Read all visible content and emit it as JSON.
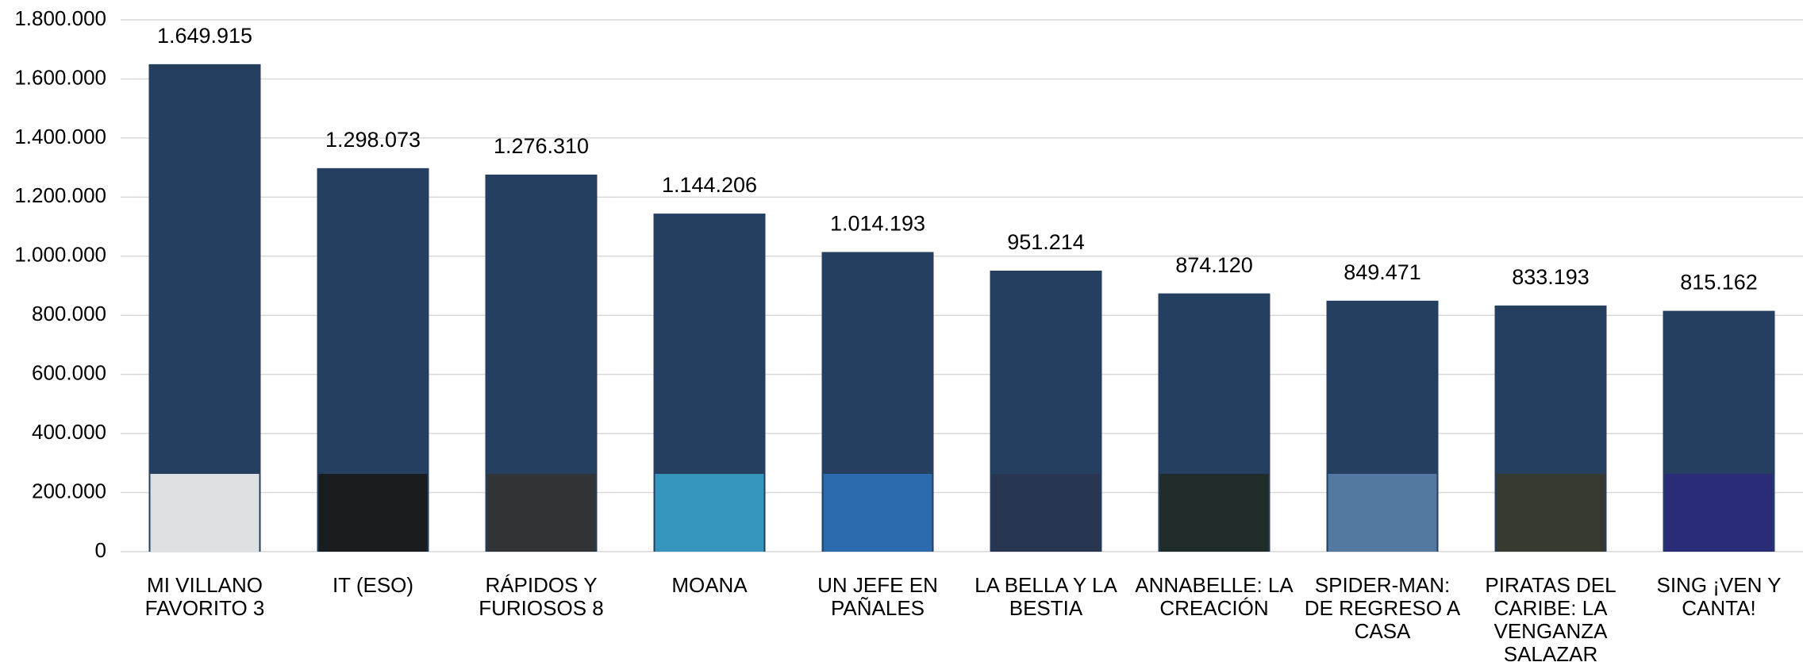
{
  "chart_data": {
    "type": "bar",
    "categories": [
      "MI VILLANO FAVORITO 3",
      "IT (ESO)",
      "RÁPIDOS Y FURIOSOS 8",
      "MOANA",
      "UN JEFE EN PAÑALES",
      "LA BELLA Y LA BESTIA",
      "ANNABELLE: LA CREACIÓN",
      "SPIDER-MAN: DE REGRESO A CASA",
      "PIRATAS DEL CARIBE: LA VENGANZA SALAZAR",
      "SING ¡VEN Y CANTA!"
    ],
    "values": [
      1649915,
      1298073,
      1276310,
      1144206,
      1014193,
      951214,
      874120,
      849471,
      833193,
      815162
    ],
    "value_labels": [
      "1.649.915",
      "1.298.073",
      "1.276.310",
      "1.144.206",
      "1.014.193",
      "951.214",
      "874.120",
      "849.471",
      "833.193",
      "815.162"
    ],
    "color": "#243f60",
    "ylim": [
      0,
      1800000
    ],
    "yticks": [
      0,
      {
        "value": 200000,
        "label": "200.000"
      },
      {
        "value": 400000,
        "label": "400.000"
      },
      {
        "value": 600000,
        "label": "600.000"
      },
      {
        "value": 800000,
        "label": "800.000"
      },
      {
        "value": 1000000,
        "label": "1.000.000"
      },
      {
        "value": 1200000,
        "label": "1.200.000"
      },
      {
        "value": 1400000,
        "label": "1.400.000"
      },
      {
        "value": 1600000,
        "label": "1.600.000"
      },
      {
        "value": 1800000,
        "label": "1.800.000"
      }
    ],
    "grid": true
  }
}
